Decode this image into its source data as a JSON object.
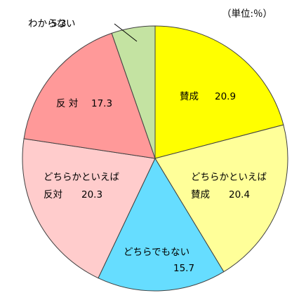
{
  "chart_data": {
    "type": "pie",
    "unit_label": "（単位:％）",
    "slices": [
      {
        "label": "賛成",
        "value": 20.9,
        "color": "#ffff00",
        "text_lines": [
          {
            "words": [
              "賛成",
              "20.9"
            ]
          }
        ]
      },
      {
        "label": "どちらかといえば賛成",
        "value": 20.4,
        "color": "#ffff99",
        "text_lines": [
          {
            "words": [
              "どちらかといえば"
            ]
          },
          {
            "words": [
              "賛成",
              "20.4"
            ]
          }
        ]
      },
      {
        "label": "どちらでもない",
        "value": 15.7,
        "color": "#66ddff",
        "text_lines": [
          {
            "words": [
              "どちらでもない"
            ]
          },
          {
            "words": [
              "15.7"
            ]
          }
        ]
      },
      {
        "label": "どちらかといえば反対",
        "value": 20.3,
        "color": "#ffcccc",
        "text_lines": [
          {
            "words": [
              "どちらかといえば"
            ]
          },
          {
            "words": [
              "反対",
              "20.3"
            ]
          }
        ]
      },
      {
        "label": "反対",
        "value": 17.3,
        "color": "#ff9999",
        "text_lines": [
          {
            "words": [
              "反 対",
              "17.3"
            ]
          }
        ]
      },
      {
        "label": "わからない",
        "value": 5.3,
        "color": "#c4e3a2",
        "text_lines": [
          {
            "words": [
              "わからない",
              "5.3"
            ]
          }
        ]
      }
    ]
  }
}
